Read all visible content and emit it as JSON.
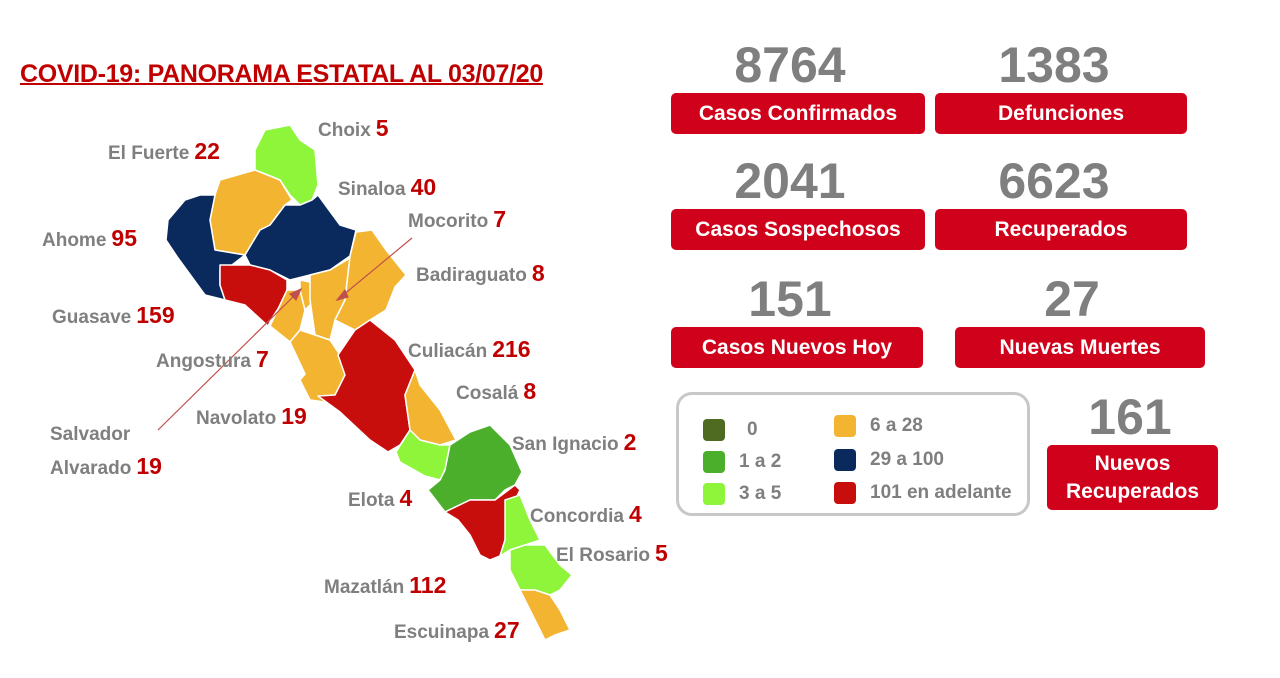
{
  "title": "COVID-19: PANORAMA ESTATAL AL 03/07/20",
  "colors": {
    "c0": "#4f6b22",
    "c1_2": "#4caf2c",
    "c3_5": "#8ef53a",
    "c6_28": "#f3b531",
    "c29_100": "#0a2a5e",
    "c101": "#c80d0d",
    "accent": "#d0021b",
    "number_gray": "#7f7f7f"
  },
  "municipalities": [
    {
      "name": "Choix",
      "value": "5",
      "range": "c3_5"
    },
    {
      "name": "El Fuerte",
      "value": "22",
      "range": "c6_28"
    },
    {
      "name": "Sinaloa",
      "value": "40",
      "range": "c29_100"
    },
    {
      "name": "Ahome",
      "value": "95",
      "range": "c29_100"
    },
    {
      "name": "Mocorito",
      "value": "7",
      "range": "c6_28"
    },
    {
      "name": "Badiraguato",
      "value": "8",
      "range": "c6_28"
    },
    {
      "name": "Guasave",
      "value": "159",
      "range": "c101"
    },
    {
      "name": "Angostura",
      "value": "7",
      "range": "c6_28"
    },
    {
      "name": "Culiacán",
      "value": "216",
      "range": "c101"
    },
    {
      "name": "Cosalá",
      "value": "8",
      "range": "c6_28"
    },
    {
      "name": "Navolato",
      "value": "19",
      "range": "c6_28"
    },
    {
      "name": "Salvador Alvarado",
      "value": "19",
      "range": "c6_28"
    },
    {
      "name": "San Ignacio",
      "value": "2",
      "range": "c1_2"
    },
    {
      "name": "Elota",
      "value": "4",
      "range": "c3_5"
    },
    {
      "name": "Concordia",
      "value": "4",
      "range": "c3_5"
    },
    {
      "name": "El Rosario",
      "value": "5",
      "range": "c3_5"
    },
    {
      "name": "Mazatlán",
      "value": "112",
      "range": "c101"
    },
    {
      "name": "Escuinapa",
      "value": "27",
      "range": "c6_28"
    }
  ],
  "salvador_line1": "Salvador",
  "salvador_line2": "Alvarado",
  "stats": [
    {
      "value": "8764",
      "label": "Casos Confirmados"
    },
    {
      "value": "1383",
      "label": "Defunciones"
    },
    {
      "value": "2041",
      "label": "Casos Sospechosos"
    },
    {
      "value": "6623",
      "label": "Recuperados"
    },
    {
      "value": "151",
      "label": "Casos Nuevos Hoy"
    },
    {
      "value": "27",
      "label": "Nuevas Muertes"
    }
  ],
  "recovered_new": {
    "value": "161",
    "label_line1": "Nuevos",
    "label_line2": "Recuperados"
  },
  "legend": [
    {
      "label": "0",
      "color": "#4f6b22"
    },
    {
      "label": "1 a 2",
      "color": "#4caf2c"
    },
    {
      "label": "3 a 5",
      "color": "#8ef53a"
    },
    {
      "label": "6 a 28",
      "color": "#f3b531"
    },
    {
      "label": "29 a 100",
      "color": "#0a2a5e"
    },
    {
      "label": "101 en adelante",
      "color": "#c80d0d"
    }
  ]
}
